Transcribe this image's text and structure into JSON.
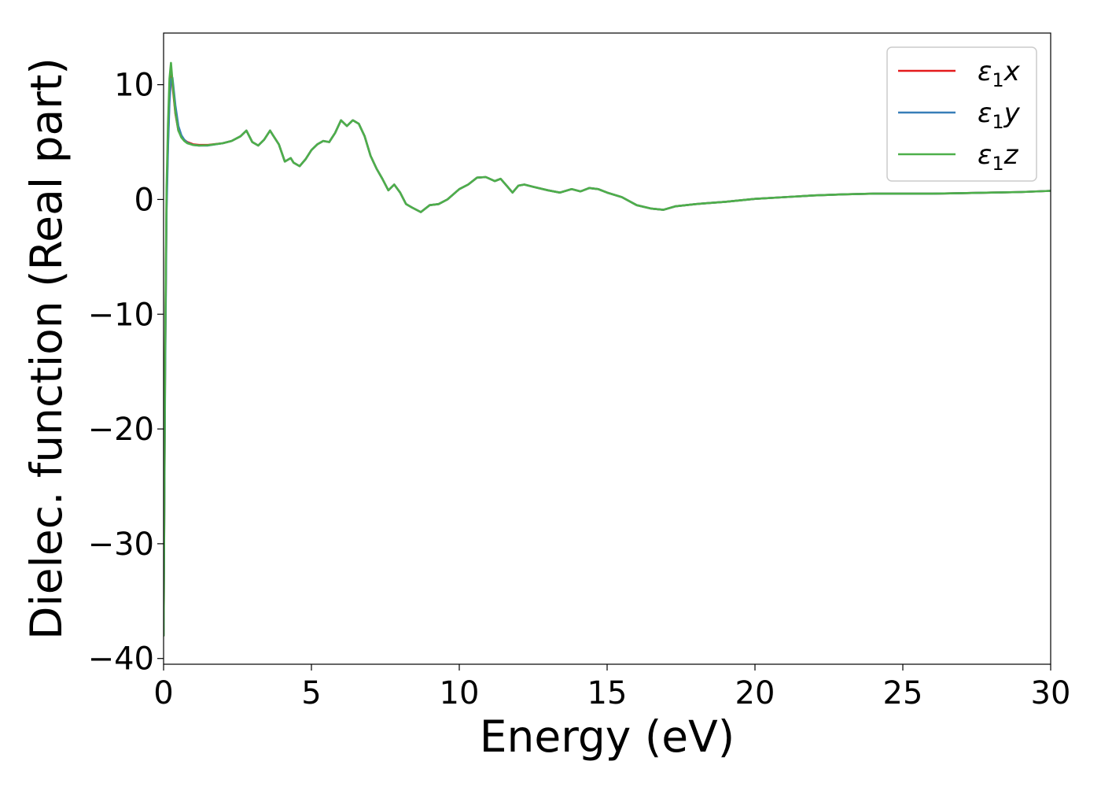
{
  "chart_data": {
    "type": "line",
    "title": "",
    "xlabel": "Energy (eV)",
    "ylabel": "Dielec. function (Real part)",
    "xlim": [
      0,
      30
    ],
    "ylim": [
      -40.5,
      14.5
    ],
    "xticks": [
      0,
      5,
      10,
      15,
      20,
      25,
      30
    ],
    "xtick_labels": [
      "0",
      "5",
      "10",
      "15",
      "20",
      "25",
      "30"
    ],
    "yticks": [
      -40,
      -30,
      -20,
      -10,
      0,
      10
    ],
    "ytick_labels": [
      "−40",
      "−30",
      "−20",
      "−10",
      "0",
      "10"
    ],
    "grid": false,
    "legend_position": "top-right",
    "series": [
      {
        "name": "ε₁x",
        "legend_base": "ε",
        "legend_sub": "1",
        "legend_var": "x",
        "color": "#e41a1c",
        "x": [
          0.0,
          0.05,
          0.1,
          0.15,
          0.2,
          0.25,
          0.3,
          0.4,
          0.5,
          0.6,
          0.7,
          0.8,
          1.0,
          1.2,
          1.5,
          2.0,
          2.3,
          2.6,
          2.8,
          3.0,
          3.2,
          3.4,
          3.6,
          3.7,
          3.9,
          4.1,
          4.3,
          4.4,
          4.6,
          4.8,
          5.0,
          5.2,
          5.4,
          5.6,
          5.8,
          6.0,
          6.2,
          6.4,
          6.6,
          6.8,
          7.0,
          7.2,
          7.4,
          7.6,
          7.8,
          8.0,
          8.2,
          8.4,
          8.7,
          9.0,
          9.3,
          9.6,
          10.0,
          10.3,
          10.6,
          10.9,
          11.2,
          11.4,
          11.6,
          11.8,
          12.0,
          12.2,
          12.5,
          13.0,
          13.4,
          13.8,
          14.1,
          14.4,
          14.7,
          15.0,
          15.5,
          16.0,
          16.5,
          16.9,
          17.3,
          18.0,
          18.5,
          19.0,
          20.0,
          21.0,
          22.0,
          23.0,
          24.0,
          25.0,
          26.0,
          27.0,
          28.0,
          29.0,
          30.0
        ],
        "y": [
          -38.0,
          -15.0,
          0.0,
          5.0,
          9.0,
          10.8,
          10.0,
          7.5,
          6.0,
          5.5,
          5.2,
          5.0,
          4.8,
          4.75,
          4.75,
          4.9,
          5.1,
          5.5,
          6.0,
          5.0,
          4.7,
          5.2,
          6.0,
          5.6,
          4.8,
          3.3,
          3.6,
          3.2,
          2.9,
          3.5,
          4.3,
          4.8,
          5.1,
          5.0,
          5.8,
          6.9,
          6.4,
          6.9,
          6.6,
          5.5,
          3.8,
          2.7,
          1.8,
          0.8,
          1.3,
          0.6,
          -0.4,
          -0.7,
          -1.1,
          -0.5,
          -0.4,
          0.0,
          0.9,
          1.3,
          1.9,
          1.95,
          1.6,
          1.8,
          1.2,
          0.6,
          1.2,
          1.3,
          1.1,
          0.8,
          0.6,
          0.9,
          0.7,
          1.0,
          0.9,
          0.6,
          0.2,
          -0.5,
          -0.8,
          -0.9,
          -0.6,
          -0.4,
          -0.3,
          -0.2,
          0.05,
          0.2,
          0.35,
          0.45,
          0.5,
          0.5,
          0.5,
          0.55,
          0.6,
          0.65,
          0.75
        ]
      },
      {
        "name": "ε₁y",
        "legend_base": "ε",
        "legend_sub": "1",
        "legend_var": "y",
        "color": "#377eb8",
        "x": [
          0.0,
          0.05,
          0.1,
          0.15,
          0.2,
          0.25,
          0.3,
          0.4,
          0.5,
          0.6,
          0.7,
          0.8,
          1.0,
          1.2,
          1.5,
          2.0,
          2.3,
          2.6,
          2.8,
          3.0,
          3.2,
          3.4,
          3.6,
          3.7,
          3.9,
          4.1,
          4.3,
          4.4,
          4.6,
          4.8,
          5.0,
          5.2,
          5.4,
          5.6,
          5.8,
          6.0,
          6.2,
          6.4,
          6.6,
          6.8,
          7.0,
          7.2,
          7.4,
          7.6,
          7.8,
          8.0,
          8.2,
          8.4,
          8.7,
          9.0,
          9.3,
          9.6,
          10.0,
          10.3,
          10.6,
          10.9,
          11.2,
          11.4,
          11.6,
          11.8,
          12.0,
          12.2,
          12.5,
          13.0,
          13.4,
          13.8,
          14.1,
          14.4,
          14.7,
          15.0,
          15.5,
          16.0,
          16.5,
          16.9,
          17.3,
          18.0,
          18.5,
          19.0,
          20.0,
          21.0,
          22.0,
          23.0,
          24.0,
          25.0,
          26.0,
          27.0,
          28.0,
          29.0,
          30.0
        ],
        "y": [
          -38.0,
          -16.0,
          -1.0,
          4.5,
          8.5,
          10.5,
          10.6,
          8.2,
          6.4,
          5.6,
          5.2,
          4.95,
          4.75,
          4.7,
          4.7,
          4.9,
          5.1,
          5.5,
          6.0,
          5.0,
          4.7,
          5.2,
          6.0,
          5.6,
          4.8,
          3.3,
          3.6,
          3.2,
          2.9,
          3.5,
          4.3,
          4.8,
          5.1,
          5.0,
          5.8,
          6.9,
          6.4,
          6.9,
          6.6,
          5.5,
          3.8,
          2.7,
          1.8,
          0.8,
          1.3,
          0.6,
          -0.4,
          -0.7,
          -1.1,
          -0.5,
          -0.4,
          0.0,
          0.9,
          1.3,
          1.9,
          1.95,
          1.6,
          1.8,
          1.2,
          0.6,
          1.2,
          1.3,
          1.1,
          0.8,
          0.6,
          0.9,
          0.7,
          1.0,
          0.9,
          0.6,
          0.2,
          -0.5,
          -0.8,
          -0.9,
          -0.6,
          -0.4,
          -0.3,
          -0.2,
          0.05,
          0.2,
          0.35,
          0.45,
          0.5,
          0.5,
          0.5,
          0.55,
          0.6,
          0.65,
          0.75
        ]
      },
      {
        "name": "ε₁z",
        "legend_base": "ε",
        "legend_sub": "1",
        "legend_var": "z",
        "color": "#4daf4a",
        "x": [
          0.0,
          0.05,
          0.1,
          0.15,
          0.2,
          0.25,
          0.3,
          0.4,
          0.5,
          0.6,
          0.7,
          0.8,
          1.0,
          1.2,
          1.5,
          2.0,
          2.3,
          2.6,
          2.8,
          3.0,
          3.2,
          3.4,
          3.6,
          3.7,
          3.9,
          4.1,
          4.3,
          4.4,
          4.6,
          4.8,
          5.0,
          5.2,
          5.4,
          5.6,
          5.8,
          6.0,
          6.2,
          6.4,
          6.6,
          6.8,
          7.0,
          7.2,
          7.4,
          7.6,
          7.8,
          8.0,
          8.2,
          8.4,
          8.7,
          9.0,
          9.3,
          9.6,
          10.0,
          10.3,
          10.6,
          10.9,
          11.2,
          11.4,
          11.6,
          11.8,
          12.0,
          12.2,
          12.5,
          13.0,
          13.4,
          13.8,
          14.1,
          14.4,
          14.7,
          15.0,
          15.5,
          16.0,
          16.5,
          16.9,
          17.3,
          18.0,
          18.5,
          19.0,
          20.0,
          21.0,
          22.0,
          23.0,
          24.0,
          25.0,
          26.0,
          27.0,
          28.0,
          29.0,
          30.0
        ],
        "y": [
          -38.0,
          -14.0,
          1.0,
          6.5,
          10.5,
          11.9,
          10.3,
          7.6,
          6.0,
          5.4,
          5.1,
          4.9,
          4.75,
          4.7,
          4.72,
          4.9,
          5.1,
          5.5,
          6.0,
          5.0,
          4.7,
          5.2,
          6.0,
          5.6,
          4.8,
          3.3,
          3.6,
          3.2,
          2.9,
          3.5,
          4.3,
          4.8,
          5.1,
          5.0,
          5.8,
          6.9,
          6.4,
          6.9,
          6.6,
          5.5,
          3.8,
          2.7,
          1.8,
          0.8,
          1.3,
          0.6,
          -0.4,
          -0.7,
          -1.1,
          -0.5,
          -0.4,
          0.0,
          0.9,
          1.3,
          1.9,
          1.95,
          1.6,
          1.8,
          1.2,
          0.6,
          1.2,
          1.3,
          1.1,
          0.8,
          0.6,
          0.9,
          0.7,
          1.0,
          0.9,
          0.6,
          0.2,
          -0.5,
          -0.8,
          -0.9,
          -0.6,
          -0.4,
          -0.3,
          -0.2,
          0.05,
          0.2,
          0.35,
          0.45,
          0.5,
          0.5,
          0.5,
          0.55,
          0.6,
          0.65,
          0.75
        ]
      }
    ]
  }
}
